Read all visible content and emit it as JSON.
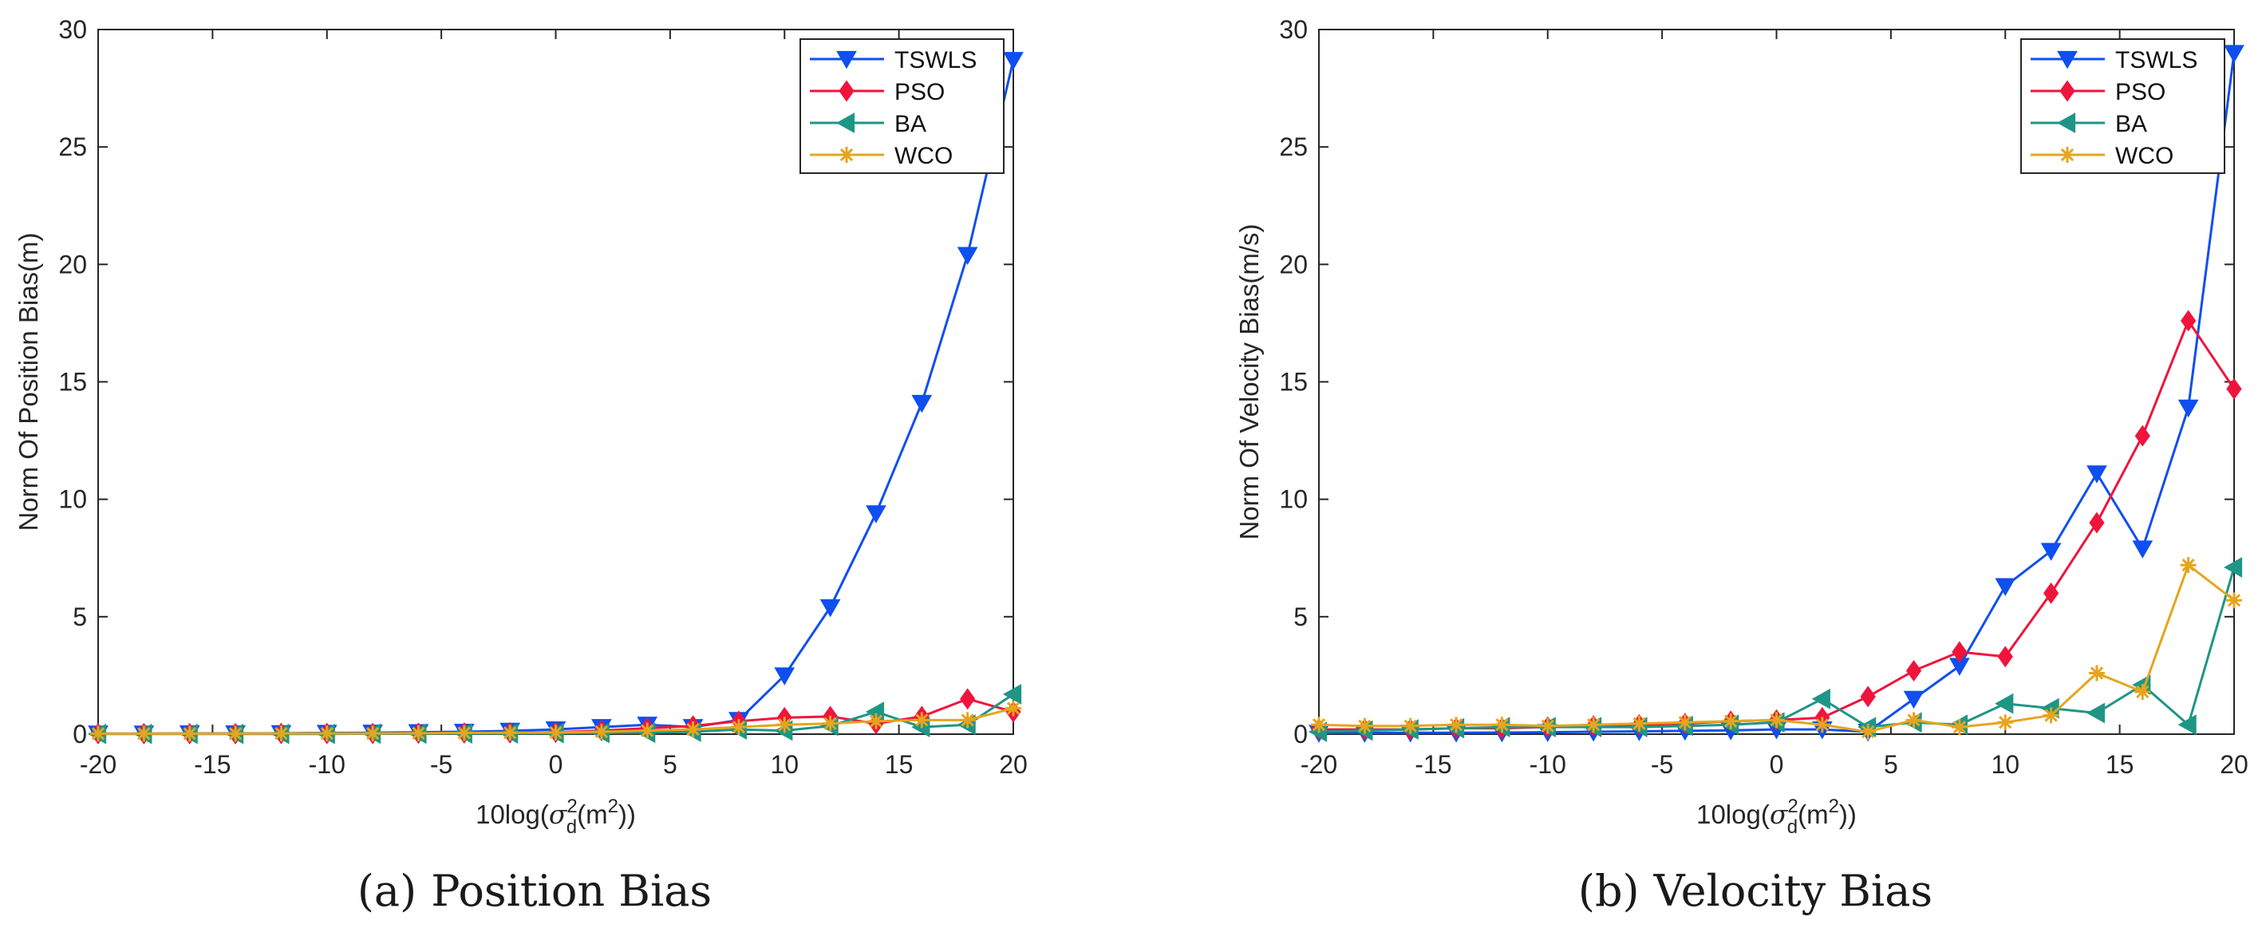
{
  "chart_data": [
    {
      "type": "line",
      "caption_label": "(a)",
      "caption_text": "Position Bias",
      "xlabel_prefix": "10log(",
      "xlabel_sigma": "σ",
      "xlabel_sup": "2",
      "xlabel_sub": "d",
      "xlabel_unit_open": "(m",
      "xlabel_unit_sup": "2",
      "xlabel_suffix": "))",
      "ylabel": "Norm Of Position Bias(m)",
      "xlim": [
        -20,
        20
      ],
      "ylim": [
        0,
        30
      ],
      "xticks": [
        -20,
        -15,
        -10,
        -5,
        0,
        5,
        10,
        15,
        20
      ],
      "yticks": [
        0,
        5,
        10,
        15,
        20,
        25,
        30
      ],
      "legend_position": "top-right",
      "x": [
        -20,
        -18,
        -16,
        -14,
        -12,
        -10,
        -8,
        -6,
        -4,
        -2,
        0,
        2,
        4,
        6,
        8,
        10,
        12,
        14,
        16,
        18,
        20
      ],
      "series": [
        {
          "name": "TSWLS",
          "color": "#0f4ff0",
          "marker": "triangle-down",
          "values": [
            0.02,
            0.02,
            0.03,
            0.03,
            0.04,
            0.05,
            0.06,
            0.08,
            0.1,
            0.14,
            0.2,
            0.3,
            0.4,
            0.3,
            0.6,
            2.5,
            5.4,
            9.4,
            14.1,
            20.4,
            28.7
          ]
        },
        {
          "name": "PSO",
          "color": "#f0143c",
          "marker": "diamond",
          "values": [
            0.02,
            0.02,
            0.02,
            0.02,
            0.03,
            0.03,
            0.03,
            0.04,
            0.05,
            0.06,
            0.08,
            0.15,
            0.25,
            0.35,
            0.55,
            0.7,
            0.75,
            0.45,
            0.75,
            1.5,
            0.95
          ]
        },
        {
          "name": "BA",
          "color": "#1e9686",
          "marker": "triangle-left",
          "values": [
            0.01,
            0.01,
            0.01,
            0.01,
            0.01,
            0.01,
            0.02,
            0.02,
            0.03,
            0.03,
            0.04,
            0.05,
            0.06,
            0.1,
            0.2,
            0.15,
            0.35,
            0.95,
            0.3,
            0.4,
            1.7
          ]
        },
        {
          "name": "WCO",
          "color": "#e6a51e",
          "marker": "asterisk",
          "values": [
            0.02,
            0.02,
            0.02,
            0.02,
            0.03,
            0.03,
            0.03,
            0.04,
            0.05,
            0.06,
            0.07,
            0.1,
            0.15,
            0.2,
            0.3,
            0.4,
            0.45,
            0.55,
            0.6,
            0.6,
            1.1
          ]
        }
      ]
    },
    {
      "type": "line",
      "caption_label": "(b)",
      "caption_text": "Velocity Bias",
      "xlabel_prefix": "10log(",
      "xlabel_sigma": "σ",
      "xlabel_sup": "2",
      "xlabel_sub": "d",
      "xlabel_unit_open": "(m",
      "xlabel_unit_sup": "2",
      "xlabel_suffix": "))",
      "ylabel": "Norm Of Velocity Bias(m/s)",
      "xlim": [
        -20,
        20
      ],
      "ylim": [
        0,
        30
      ],
      "xticks": [
        -20,
        -15,
        -10,
        -5,
        0,
        5,
        10,
        15,
        20
      ],
      "yticks": [
        0,
        5,
        10,
        15,
        20,
        25,
        30
      ],
      "legend_position": "top-right",
      "x": [
        -20,
        -18,
        -16,
        -14,
        -12,
        -10,
        -8,
        -6,
        -4,
        -2,
        0,
        2,
        4,
        6,
        8,
        10,
        12,
        14,
        16,
        18,
        20
      ],
      "series": [
        {
          "name": "TSWLS",
          "color": "#0f4ff0",
          "marker": "triangle-down",
          "values": [
            0.05,
            0.05,
            0.06,
            0.06,
            0.07,
            0.08,
            0.1,
            0.12,
            0.14,
            0.16,
            0.2,
            0.2,
            0.1,
            1.5,
            2.9,
            6.3,
            7.8,
            11.1,
            7.9,
            13.9,
            29.0
          ]
        },
        {
          "name": "PSO",
          "color": "#f0143c",
          "marker": "diamond",
          "values": [
            0.2,
            0.2,
            0.2,
            0.25,
            0.25,
            0.3,
            0.35,
            0.4,
            0.45,
            0.55,
            0.6,
            0.7,
            1.6,
            2.7,
            3.5,
            3.3,
            6.0,
            9.0,
            12.7,
            17.6,
            14.7
          ]
        },
        {
          "name": "BA",
          "color": "#1e9686",
          "marker": "triangle-left",
          "values": [
            0.1,
            0.15,
            0.2,
            0.25,
            0.3,
            0.3,
            0.3,
            0.3,
            0.35,
            0.4,
            0.5,
            1.5,
            0.3,
            0.5,
            0.4,
            1.3,
            1.1,
            0.9,
            2.1,
            0.4,
            7.1
          ]
        },
        {
          "name": "WCO",
          "color": "#e6a51e",
          "marker": "asterisk",
          "values": [
            0.4,
            0.35,
            0.35,
            0.4,
            0.4,
            0.35,
            0.4,
            0.45,
            0.5,
            0.55,
            0.6,
            0.4,
            0.1,
            0.6,
            0.3,
            0.5,
            0.8,
            2.6,
            1.8,
            7.2,
            5.7
          ]
        }
      ]
    }
  ]
}
